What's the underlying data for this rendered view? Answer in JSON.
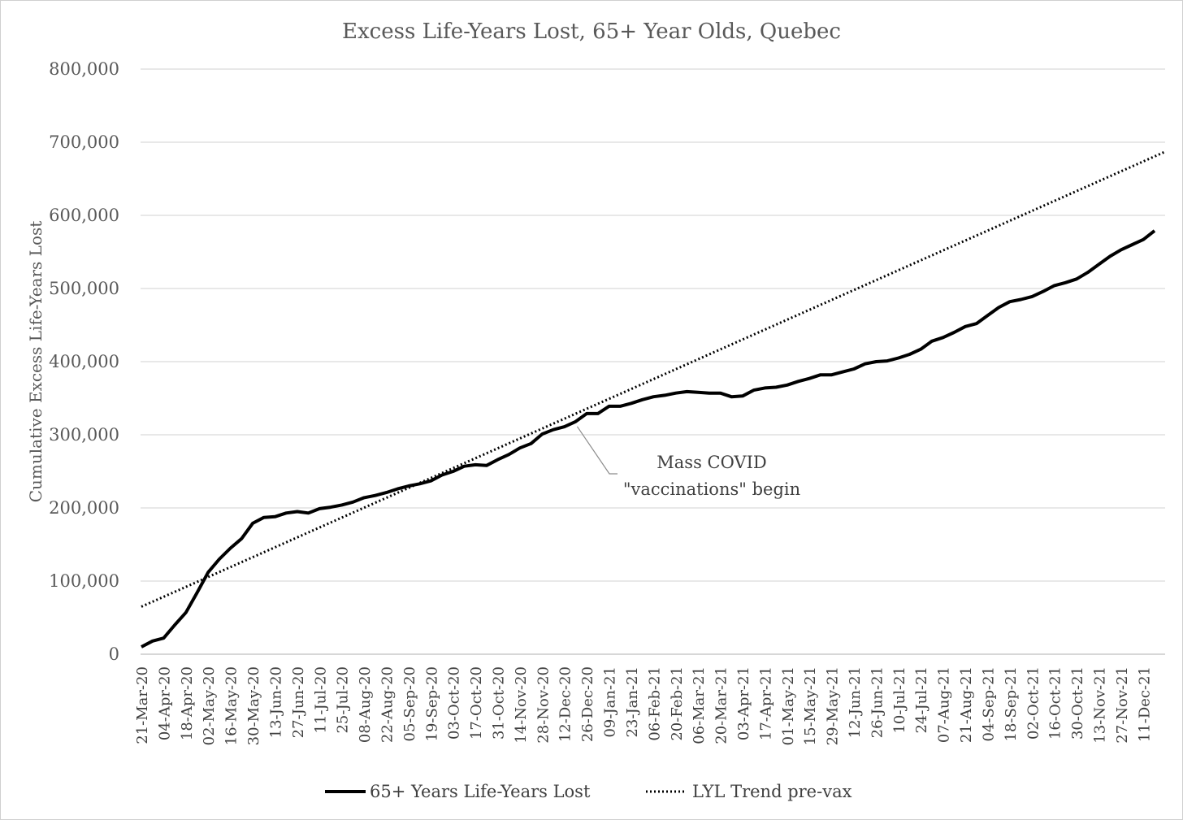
{
  "chart_data": {
    "type": "line",
    "title": "Excess Life-Years Lost, 65+ Year Olds, Quebec",
    "ylabel": "Cumulative Excess Life-Years Lost",
    "xlabel": "",
    "ylim": [
      0,
      800000
    ],
    "y_ticks": [
      "0",
      "100,000",
      "200,000",
      "300,000",
      "400,000",
      "500,000",
      "600,000",
      "700,000",
      "800,000"
    ],
    "y_tick_values": [
      0,
      100000,
      200000,
      300000,
      400000,
      500000,
      600000,
      700000,
      800000
    ],
    "grid": true,
    "legend_position": "bottom",
    "x_tick_labels": [
      "21-Mar-20",
      "04-Apr-20",
      "18-Apr-20",
      "02-May-20",
      "16-May-20",
      "30-May-20",
      "13-Jun-20",
      "27-Jun-20",
      "11-Jul-20",
      "25-Jul-20",
      "08-Aug-20",
      "22-Aug-20",
      "05-Sep-20",
      "19-Sep-20",
      "03-Oct-20",
      "17-Oct-20",
      "31-Oct-20",
      "14-Nov-20",
      "28-Nov-20",
      "12-Dec-20",
      "26-Dec-20",
      "09-Jan-21",
      "23-Jan-21",
      "06-Feb-21",
      "20-Feb-21",
      "06-Mar-21",
      "20-Mar-21",
      "03-Apr-21",
      "17-Apr-21",
      "01-May-21",
      "15-May-21",
      "29-May-21",
      "12-Jun-21",
      "26-Jun-21",
      "10-Jul-21",
      "24-Jul-21",
      "07-Aug-21",
      "21-Aug-21",
      "04-Sep-21",
      "18-Sep-21",
      "02-Oct-21",
      "16-Oct-21",
      "30-Oct-21",
      "13-Nov-21",
      "27-Nov-21",
      "11-Dec-21"
    ],
    "x_week_count": 92,
    "series": [
      {
        "name": "65+ Years Life-Years Lost",
        "style": "solid",
        "color": "#000000",
        "values": [
          10000,
          18000,
          22000,
          40000,
          57000,
          84000,
          112000,
          130000,
          145000,
          158000,
          179000,
          187000,
          188000,
          193000,
          195000,
          193000,
          199000,
          201000,
          204000,
          208000,
          214000,
          217000,
          221000,
          226000,
          230000,
          233000,
          237000,
          245000,
          250000,
          257000,
          259000,
          258000,
          266000,
          273000,
          282000,
          288000,
          301000,
          307000,
          311000,
          318000,
          329000,
          329000,
          339000,
          339000,
          343000,
          348000,
          352000,
          354000,
          357000,
          359000,
          358000,
          357000,
          357000,
          352000,
          353000,
          361000,
          364000,
          365000,
          368000,
          373000,
          377000,
          382000,
          382000,
          386000,
          390000,
          397000,
          400000,
          401000,
          405000,
          410000,
          417000,
          428000,
          433000,
          440000,
          448000,
          452000,
          463000,
          474000,
          482000,
          485000,
          489000,
          496000,
          504000,
          508000,
          513000,
          522000,
          533000,
          544000,
          553000,
          560000,
          567000,
          579000
        ]
      },
      {
        "name": "LYL Trend pre-vax",
        "style": "dotted",
        "color": "#000000",
        "values": [
          65000,
          687000
        ]
      }
    ],
    "annotations": [
      {
        "text_line1": "Mass COVID",
        "text_line2": "\"vaccinations\" begin",
        "points_to_week": 39
      }
    ]
  }
}
